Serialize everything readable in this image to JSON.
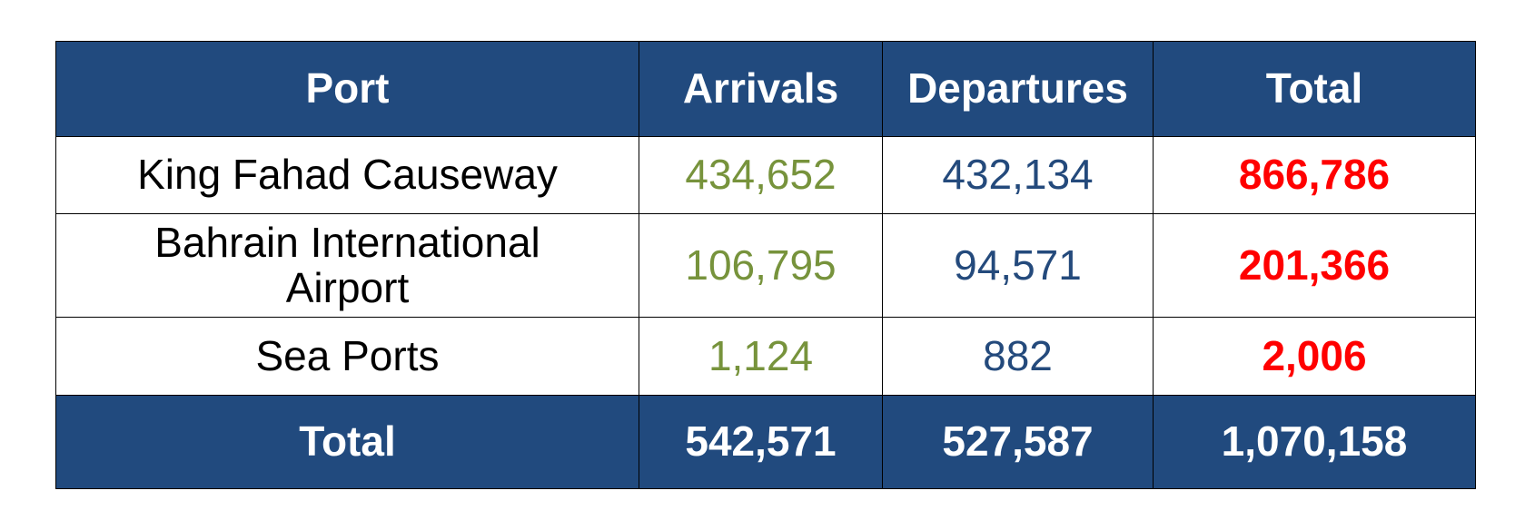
{
  "table": {
    "header": [
      "Port",
      "Arrivals",
      "Departures",
      "Total"
    ],
    "rows": [
      [
        "King Fahad Causeway",
        "434,652",
        "432,134",
        "866,786"
      ],
      [
        "Bahrain International Airport",
        "106,795",
        "94,571",
        "201,366"
      ],
      [
        "Sea Ports",
        "1,124",
        "882",
        "2,006"
      ]
    ],
    "footer": [
      "Total",
      "542,571",
      "527,587",
      "1,070,158"
    ]
  }
}
